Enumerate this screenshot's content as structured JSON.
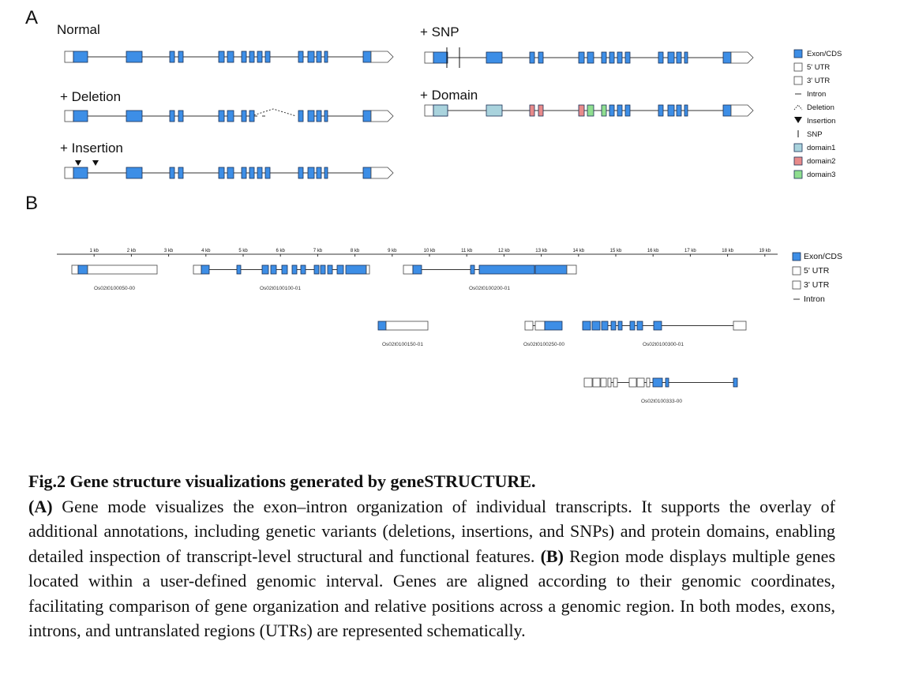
{
  "colors": {
    "exon": "#3d8ee6",
    "exon_stroke": "#1a2f55",
    "line": "#333333",
    "domain1": "#a9d3dd",
    "domain2": "#e88a8a",
    "domain3": "#8fde8f"
  },
  "panel_a": {
    "label": "A",
    "tracks": {
      "normal": "Normal",
      "deletion": "+ Deletion",
      "insertion": "+ Insertion",
      "snp": "+ SNP",
      "domain": "+ Domain"
    },
    "legend": [
      "Exon/CDS",
      "5' UTR",
      "3' UTR",
      "Intron",
      "Deletion",
      "Insertion",
      "SNP",
      "domain1",
      "domain2",
      "domain3"
    ]
  },
  "panel_b": {
    "label": "B",
    "axis_ticks": [
      "1 kb",
      "2 kb",
      "3 kb",
      "4 kb",
      "5 kb",
      "6 kb",
      "7 kb",
      "8 kb",
      "9 kb",
      "10 kb",
      "11 kb",
      "12 kb",
      "13 kb",
      "14 kb",
      "15 kb",
      "16 kb",
      "17 kb",
      "18 kb",
      "19 kb"
    ],
    "gene_labels": [
      "Os02t0100050-00",
      "Os02t0100100-01",
      "Os02t0100200-01",
      "Os02t0100150-01",
      "Os02t0100250-00",
      "Os02t0100300-01",
      "Os02t0100333-00"
    ],
    "legend": [
      "Exon/CDS",
      "5' UTR",
      "3' UTR",
      "Intron"
    ]
  },
  "caption": {
    "title": "Fig.2 Gene structure visualizations generated by geneSTRUCTURE.",
    "label_a": "(A)",
    "text_a": "Gene mode visualizes the exon–intron organization of individual transcripts. It supports the overlay of additional annotations, including genetic variants (deletions, insertions, and SNPs) and protein domains, enabling detailed inspection of transcript-level structural and functional features.",
    "label_b": "(B)",
    "text_b": "Region mode displays multiple genes located within a user-defined genomic interval. Genes are aligned according to their genomic coordinates, facilitating comparison of gene organization and relative positions across a genomic region. In both modes, exons, introns, and untranslated regions (UTRs) are represented schematically."
  }
}
